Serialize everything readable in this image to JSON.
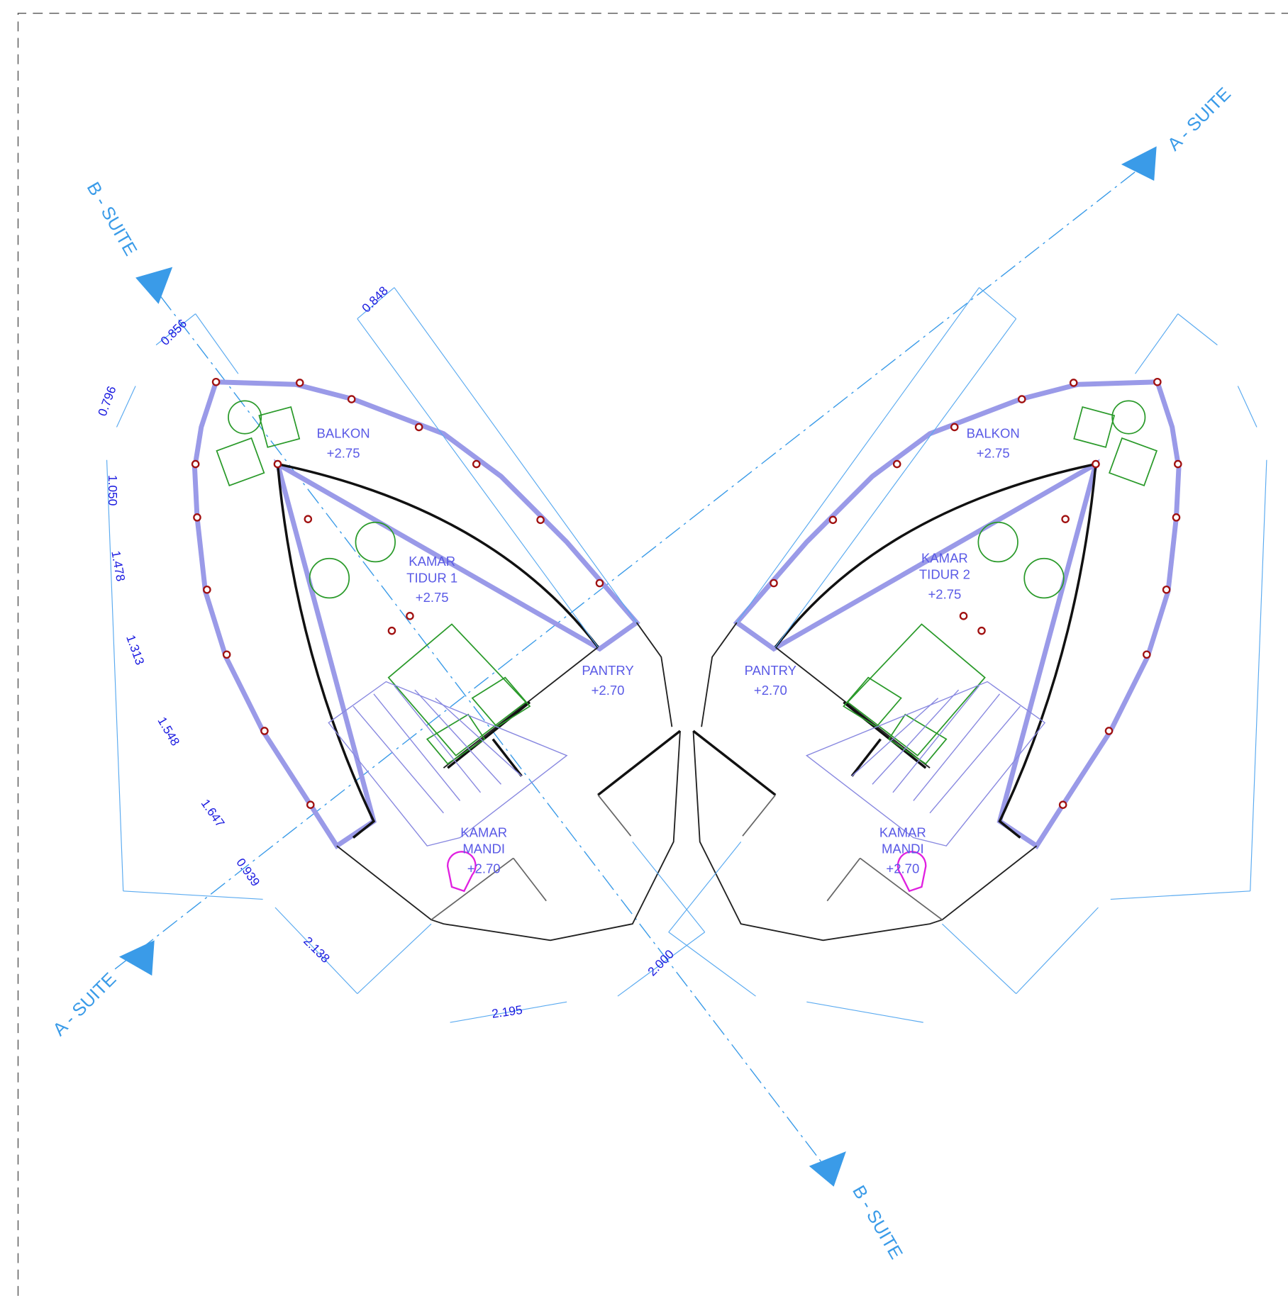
{
  "section_markers": [
    "B - SUITE",
    "A - SUITE",
    "A - SUITE",
    "B - SUITE"
  ],
  "rooms": [
    {
      "name": [
        "BALKON"
      ],
      "level": "+2.75"
    },
    {
      "name": [
        "KAMAR",
        "TIDUR 1"
      ],
      "level": "+2.75"
    },
    {
      "name": [
        "PANTRY"
      ],
      "level": "+2.70"
    },
    {
      "name": [
        "KAMAR",
        "MANDI"
      ],
      "level": "+2.70"
    },
    {
      "name": [
        "BALKON"
      ],
      "level": "+2.75"
    },
    {
      "name": [
        "KAMAR",
        "TIDUR 2"
      ],
      "level": "+2.75"
    },
    {
      "name": [
        "PANTRY"
      ],
      "level": "+2.70"
    },
    {
      "name": [
        "KAMAR",
        "MANDI"
      ],
      "level": "+2.70"
    }
  ],
  "dimensions": [
    "0.856",
    "0.848",
    "0.796",
    "1.050",
    "1.478",
    "1.313",
    "1.548",
    "1.647",
    "0.939",
    "2.138",
    "2.195",
    "2.000"
  ]
}
